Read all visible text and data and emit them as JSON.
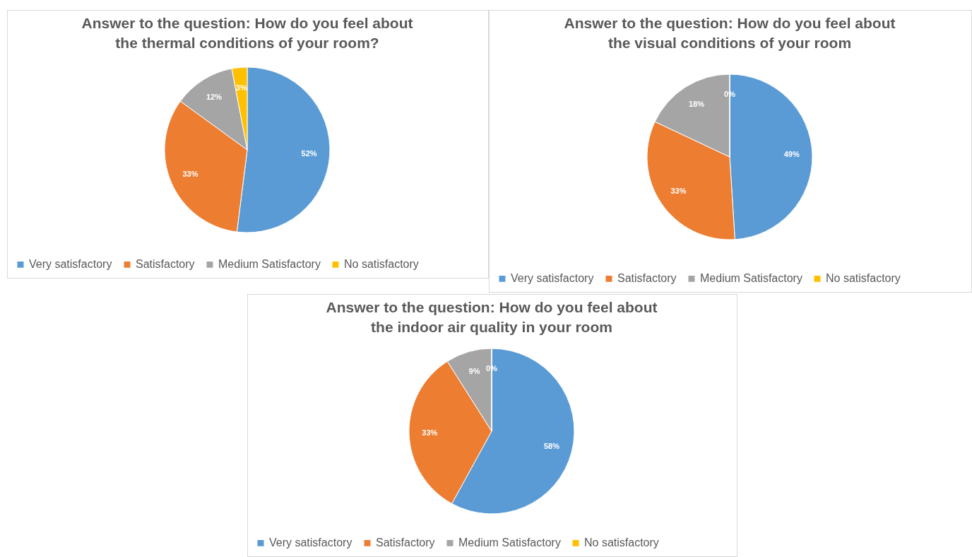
{
  "chart_data": [
    {
      "type": "pie",
      "title": "Answer to the question: How do you feel about the thermal conditions of your room?",
      "categories": [
        "Very satisfactory",
        "Satisfactory",
        "Medium Satisfactory",
        "No satisfactory"
      ],
      "values": [
        52,
        33,
        12,
        3
      ],
      "colors": [
        "#5b9bd5",
        "#ed7d31",
        "#a5a5a5",
        "#ffc000"
      ],
      "value_labels": [
        "52%",
        "33%",
        "12%",
        "3%"
      ],
      "legend": "bottom"
    },
    {
      "type": "pie",
      "title": "Answer to the question: How do you feel about the visual conditions of your room",
      "categories": [
        "Very satisfactory",
        "Satisfactory",
        "Medium Satisfactory",
        "No satisfactory"
      ],
      "values": [
        49,
        33,
        18,
        0
      ],
      "colors": [
        "#5b9bd5",
        "#ed7d31",
        "#a5a5a5",
        "#ffc000"
      ],
      "value_labels": [
        "49%",
        "33%",
        "18%",
        "0%"
      ],
      "legend": "bottom"
    },
    {
      "type": "pie",
      "title": "Answer to the question: How do you feel about the indoor air quality in your room",
      "categories": [
        "Very satisfactory",
        "Satisfactory",
        "Medium Satisfactory",
        "No satisfactory"
      ],
      "values": [
        58,
        33,
        9,
        0
      ],
      "colors": [
        "#5b9bd5",
        "#ed7d31",
        "#a5a5a5",
        "#ffc000"
      ],
      "value_labels": [
        "58%",
        "33%",
        "9%",
        "0%"
      ],
      "legend": "bottom"
    }
  ]
}
